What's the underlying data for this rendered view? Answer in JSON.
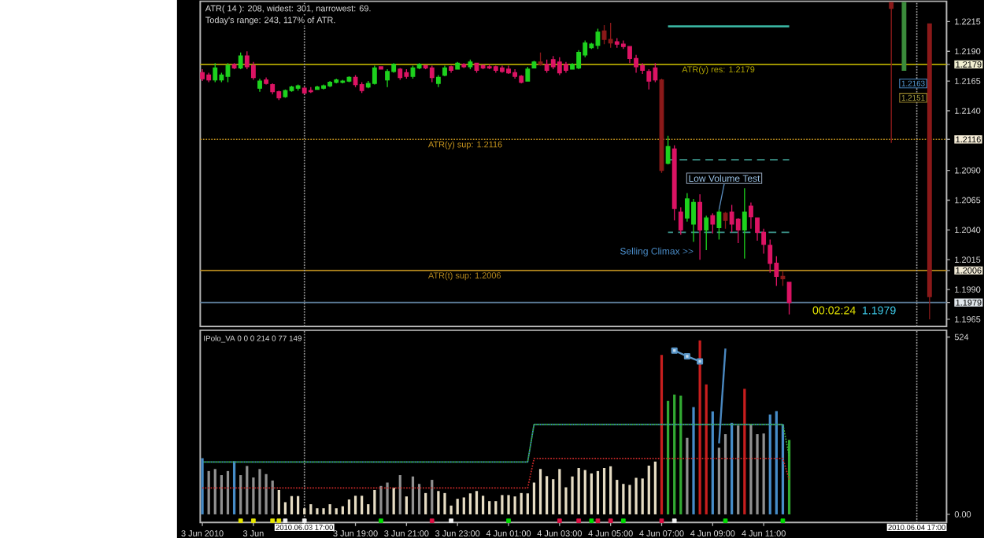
{
  "chart_data": [
    {
      "type": "candlestick",
      "x": [
        "2010-06-03T13:00",
        "2010-06-03T13:15",
        "2010-06-03T13:30",
        "2010-06-03T13:45",
        "2010-06-03T14:00",
        "2010-06-03T14:15",
        "2010-06-03T14:30",
        "2010-06-03T14:45",
        "2010-06-03T15:00",
        "2010-06-03T15:15",
        "2010-06-03T15:30",
        "2010-06-03T15:45",
        "2010-06-03T16:00",
        "2010-06-03T16:15",
        "2010-06-03T16:30",
        "2010-06-03T16:45",
        "2010-06-03T17:00",
        "2010-06-03T17:15",
        "2010-06-03T17:30",
        "2010-06-03T17:45",
        "2010-06-03T18:00",
        "2010-06-03T18:15",
        "2010-06-03T18:30",
        "2010-06-03T18:45",
        "2010-06-03T19:00",
        "2010-06-03T19:15",
        "2010-06-03T19:30",
        "2010-06-03T19:45",
        "2010-06-03T20:00",
        "2010-06-03T20:15",
        "2010-06-03T20:30",
        "2010-06-03T20:45",
        "2010-06-03T21:00",
        "2010-06-03T21:15",
        "2010-06-03T21:30",
        "2010-06-03T21:45",
        "2010-06-03T22:00",
        "2010-06-03T22:15",
        "2010-06-03T22:30",
        "2010-06-03T22:45",
        "2010-06-03T23:00",
        "2010-06-03T23:15",
        "2010-06-03T23:30",
        "2010-06-03T23:45",
        "2010-06-04T00:00",
        "2010-06-04T00:15",
        "2010-06-04T00:30",
        "2010-06-04T00:45",
        "2010-06-04T01:00",
        "2010-06-04T01:15",
        "2010-06-04T01:30",
        "2010-06-04T01:45",
        "2010-06-04T02:00",
        "2010-06-04T02:15",
        "2010-06-04T02:30",
        "2010-06-04T02:45",
        "2010-06-04T03:00",
        "2010-06-04T03:15",
        "2010-06-04T03:30",
        "2010-06-04T03:45",
        "2010-06-04T04:00",
        "2010-06-04T04:15",
        "2010-06-04T04:30",
        "2010-06-04T04:45",
        "2010-06-04T05:00",
        "2010-06-04T05:15",
        "2010-06-04T05:30",
        "2010-06-04T05:45",
        "2010-06-04T06:00",
        "2010-06-04T06:15",
        "2010-06-04T06:30",
        "2010-06-04T06:45",
        "2010-06-04T07:00",
        "2010-06-04T07:15",
        "2010-06-04T07:30",
        "2010-06-04T07:45",
        "2010-06-04T08:00",
        "2010-06-04T08:15",
        "2010-06-04T08:30",
        "2010-06-04T08:45",
        "2010-06-04T09:00",
        "2010-06-04T09:15",
        "2010-06-04T09:30",
        "2010-06-04T09:45",
        "2010-06-04T10:00",
        "2010-06-04T10:15",
        "2010-06-04T10:30",
        "2010-06-04T10:45",
        "2010-06-04T11:00",
        "2010-06-04T11:15",
        "2010-06-04T11:30",
        "2010-06-04T11:45",
        "2010-06-04T12:00",
        "2010-06-04T16:00",
        "2010-06-04T16:30",
        "2010-06-04T17:30"
      ],
      "ohlc": [
        [
          1.2172,
          1.2175,
          1.2165,
          1.2167
        ],
        [
          1.217,
          1.2172,
          1.2164,
          1.2166
        ],
        [
          1.2166,
          1.218,
          1.2164,
          1.2176
        ],
        [
          1.2166,
          1.2172,
          1.2164,
          1.217
        ],
        [
          1.2169,
          1.218,
          1.2164,
          1.2178
        ],
        [
          1.2179,
          1.218,
          1.2175,
          1.2176
        ],
        [
          1.2176,
          1.2189,
          1.2175,
          1.2186
        ],
        [
          1.2186,
          1.219,
          1.2175,
          1.2177
        ],
        [
          1.2178,
          1.2181,
          1.2166,
          1.2168
        ],
        [
          1.2159,
          1.2167,
          1.2156,
          1.2165
        ],
        [
          1.2166,
          1.2168,
          1.2162,
          1.2163
        ],
        [
          1.2162,
          1.2163,
          1.2154,
          1.2156
        ],
        [
          1.2156,
          1.2157,
          1.2149,
          1.2151
        ],
        [
          1.2152,
          1.2158,
          1.2151,
          1.2157
        ],
        [
          1.2157,
          1.2161,
          1.2156,
          1.216
        ],
        [
          1.2159,
          1.2162,
          1.2157,
          1.2161
        ],
        [
          1.2159,
          1.216,
          1.2154,
          1.2155
        ],
        [
          1.2157,
          1.216,
          1.2155,
          1.2156
        ],
        [
          1.2158,
          1.2161,
          1.2158,
          1.216
        ],
        [
          1.2159,
          1.2162,
          1.2158,
          1.2161
        ],
        [
          1.2161,
          1.2165,
          1.216,
          1.2164
        ],
        [
          1.2164,
          1.2167,
          1.2163,
          1.2166
        ],
        [
          1.2164,
          1.2166,
          1.2163,
          1.2165
        ],
        [
          1.2165,
          1.2169,
          1.2164,
          1.2168
        ],
        [
          1.2168,
          1.217,
          1.216,
          1.2162
        ],
        [
          1.2162,
          1.2164,
          1.2155,
          1.2157
        ],
        [
          1.216,
          1.2165,
          1.2159,
          1.2163
        ],
        [
          1.2163,
          1.2178,
          1.2162,
          1.2176
        ],
        [
          1.2177,
          1.2177,
          1.2175,
          1.2175
        ],
        [
          1.2166,
          1.2175,
          1.216,
          1.2173
        ],
        [
          1.2173,
          1.218,
          1.2172,
          1.2179
        ],
        [
          1.2175,
          1.2176,
          1.2166,
          1.2168
        ],
        [
          1.2172,
          1.2175,
          1.2167,
          1.2169
        ],
        [
          1.2169,
          1.2178,
          1.2167,
          1.2176
        ],
        [
          1.2176,
          1.218,
          1.2175,
          1.2179
        ],
        [
          1.2178,
          1.2178,
          1.2175,
          1.2176
        ],
        [
          1.2176,
          1.2178,
          1.2164,
          1.2168
        ],
        [
          1.2163,
          1.217,
          1.216,
          1.2168
        ],
        [
          1.217,
          1.2178,
          1.2169,
          1.2176
        ],
        [
          1.2177,
          1.2178,
          1.2172,
          1.2174
        ],
        [
          1.2175,
          1.2181,
          1.2175,
          1.218
        ],
        [
          1.2179,
          1.218,
          1.2176,
          1.2177
        ],
        [
          1.2177,
          1.2183,
          1.2175,
          1.2181
        ],
        [
          1.218,
          1.218,
          1.2172,
          1.2174
        ],
        [
          1.2178,
          1.2179,
          1.2175,
          1.2176
        ],
        [
          1.2177,
          1.2179,
          1.2175,
          1.2176
        ],
        [
          1.2177,
          1.2178,
          1.2172,
          1.2174
        ],
        [
          1.2176,
          1.2178,
          1.2172,
          1.2173
        ],
        [
          1.2175,
          1.2178,
          1.2171,
          1.2172
        ],
        [
          1.2172,
          1.2175,
          1.2167,
          1.2169
        ],
        [
          1.2169,
          1.217,
          1.2163,
          1.2164
        ],
        [
          1.2165,
          1.2177,
          1.2165,
          1.2175
        ],
        [
          1.2176,
          1.2182,
          1.2176,
          1.2181
        ],
        [
          1.2181,
          1.2189,
          1.2178,
          1.2179
        ],
        [
          1.2179,
          1.2183,
          1.2172,
          1.2174
        ],
        [
          1.2183,
          1.2186,
          1.2175,
          1.2177
        ],
        [
          1.2181,
          1.2185,
          1.217,
          1.2172
        ],
        [
          1.2179,
          1.2181,
          1.2172,
          1.2174
        ],
        [
          1.2175,
          1.218,
          1.2175,
          1.2179
        ],
        [
          1.2176,
          1.2191,
          1.2175,
          1.2189
        ],
        [
          1.2187,
          1.2199,
          1.2185,
          1.2197
        ],
        [
          1.2193,
          1.2197,
          1.2192,
          1.2196
        ],
        [
          1.2195,
          1.2209,
          1.2192,
          1.2206
        ],
        [
          1.2207,
          1.2212,
          1.2196,
          1.22
        ],
        [
          1.22,
          1.2214,
          1.2193,
          1.2197
        ],
        [
          1.2198,
          1.2201,
          1.2193,
          1.2196
        ],
        [
          1.2196,
          1.2199,
          1.2192,
          1.2194
        ],
        [
          1.2194,
          1.2194,
          1.218,
          1.2184
        ],
        [
          1.2184,
          1.2187,
          1.2172,
          1.2177
        ],
        [
          1.2178,
          1.218,
          1.2171,
          1.2174
        ],
        [
          1.2173,
          1.2175,
          1.2158,
          1.2165
        ],
        [
          1.2176,
          1.218,
          1.2164,
          1.2166
        ],
        [
          1.2166,
          1.2167,
          1.2088,
          1.209
        ],
        [
          1.2096,
          1.2119,
          1.2095,
          1.211
        ],
        [
          1.2108,
          1.2111,
          1.2048,
          1.2058
        ],
        [
          1.2055,
          1.2059,
          1.2036,
          1.204
        ],
        [
          1.205,
          1.2071,
          1.2047,
          1.2066
        ],
        [
          1.2045,
          1.2066,
          1.203,
          1.2063
        ],
        [
          1.2063,
          1.207,
          1.2015,
          1.204
        ],
        [
          1.204,
          1.2052,
          1.2023,
          1.205
        ],
        [
          1.2052,
          1.2054,
          1.2037,
          1.2045
        ],
        [
          1.2042,
          1.2057,
          1.2032,
          1.2055
        ],
        [
          1.2054,
          1.2055,
          1.2041,
          1.2048
        ],
        [
          1.2055,
          1.2061,
          1.2038,
          1.2045
        ],
        [
          1.2049,
          1.205,
          1.2029,
          1.204
        ],
        [
          1.204,
          1.2075,
          1.2016,
          1.2055
        ],
        [
          1.206,
          1.2063,
          1.2041,
          1.2051
        ],
        [
          1.205,
          1.205,
          1.2031,
          1.2038
        ],
        [
          1.2038,
          1.2041,
          1.202,
          1.2028
        ],
        [
          1.2027,
          1.2032,
          1.2004,
          1.2012
        ],
        [
          1.2012,
          1.2018,
          1.1993,
          1.2001
        ],
        [
          1.2001,
          1.2005,
          1.1993,
          1.1999
        ],
        [
          1.1996,
          1.1996,
          1.1969,
          1.1979
        ],
        [
          1.2231,
          1.2231,
          1.2113,
          1.2226
        ],
        [
          1.2174,
          1.2231,
          1.2174,
          1.2231
        ],
        [
          1.2213,
          1.2213,
          1.1965,
          1.1984
        ]
      ],
      "colors": [
        "#dc1464",
        "#dc1464",
        "#1ed21e",
        "#1ed21e",
        "#1ed21e",
        "#dc1464",
        "#1ed21e",
        "#dc1464",
        "#dc1464",
        "#1ed21e",
        "#dc1464",
        "#dc1464",
        "#dc1464",
        "#1ed21e",
        "#1ed21e",
        "#1ed21e",
        "#dc1464",
        "#dc1464",
        "#1ed21e",
        "#1ed21e",
        "#1ed21e",
        "#1ed21e",
        "#1ed21e",
        "#1ed21e",
        "#dc1464",
        "#dc1464",
        "#1ed21e",
        "#1ed21e",
        "#dc1464",
        "#1ed21e",
        "#1ed21e",
        "#dc1464",
        "#dc1464",
        "#1ed21e",
        "#1ed21e",
        "#dc1464",
        "#dc1464",
        "#1ed21e",
        "#1ed21e",
        "#dc1464",
        "#1ed21e",
        "#dc1464",
        "#1ed21e",
        "#dc1464",
        "#dc1464",
        "#dc1464",
        "#dc1464",
        "#dc1464",
        "#dc1464",
        "#dc1464",
        "#dc1464",
        "#1ed21e",
        "#1ed21e",
        "#8b1a1a",
        "#dc1464",
        "#dc1464",
        "#dc1464",
        "#dc1464",
        "#1ed21e",
        "#1ed21e",
        "#1ed21e",
        "#1ed21e",
        "#1ed21e",
        "#8b1a1a",
        "#8b1a1a",
        "#dc1464",
        "#dc1464",
        "#dc1464",
        "#dc1464",
        "#dc1464",
        "#dc1464",
        "#dc1464",
        "#8b1a1a",
        "#1ed21e",
        "#dc1464",
        "#dc1464",
        "#1ed21e",
        "#1ed21e",
        "#dc1464",
        "#1ed21e",
        "#dc1464",
        "#1ed21e",
        "#8b1a1a",
        "#dc1464",
        "#dc1464",
        "#1ed21e",
        "#dc1464",
        "#dc1464",
        "#dc1464",
        "#dc1464",
        "#dc1464",
        "#8b1a1a",
        "#dc1464",
        "#8b1a1a",
        "#3c8c3c",
        "#8b1a1a"
      ],
      "series": [
        {
          "type": "line",
          "x": [
            "2010-06-04T07:15",
            "2010-06-04T12:00"
          ],
          "values": [
            1.2211,
            1.2211
          ],
          "color": "#3cbca8",
          "line_style": "solid"
        },
        {
          "type": "line",
          "x": [
            "2010-06-04T07:15",
            "2010-06-04T12:00"
          ],
          "values": [
            1.2099,
            1.2099
          ],
          "color": "#3c968c",
          "line_style": "dashed"
        },
        {
          "type": "line",
          "x": [
            "2010-06-04T07:15",
            "2010-06-04T12:00"
          ],
          "values": [
            1.2038,
            1.2038
          ],
          "color": "#3c968c",
          "line_style": "dashed"
        }
      ],
      "xlim": [
        "2010-06-03T12:55",
        "2010-06-04T18:10"
      ],
      "ylim": [
        1.1959,
        1.2232
      ],
      "yticks": [
        1.2215,
        {
          "value": 1.219,
          "label": "1.2190"
        },
        1.2179,
        1.2165,
        {
          "value": 1.214,
          "label": "1.2140"
        },
        1.2116,
        {
          "value": 1.209,
          "label": "1.2090"
        },
        1.2065,
        {
          "value": 1.204,
          "label": "1.2040"
        },
        1.2015,
        1.2006,
        {
          "value": 1.199,
          "label": "1.1990"
        },
        1.1979,
        1.1965
      ],
      "tick_labels": "y",
      "ref_lines": [
        {
          "axis": "y",
          "value": 1.2179,
          "label": "ATR(y) res: 1.2179",
          "color": "#b4a800",
          "line_style": "solid"
        },
        {
          "axis": "y",
          "value": 1.2116,
          "label": "ATR(y) sup: 1.2116",
          "color": "#c8961e",
          "line_style": "dotted"
        },
        {
          "axis": "y",
          "value": 1.2006,
          "label": "ATR(t) sup: 1.2006",
          "color": "#b4881e",
          "line_style": "solid"
        },
        {
          "axis": "y",
          "value": 1.1979,
          "color": "#5a7a96",
          "line_style": "solid"
        },
        {
          "axis": "x",
          "value": "2010-06-03T17:00",
          "color": "#a0a0a0",
          "line_style": "dotted"
        },
        {
          "axis": "x",
          "value": "2010-06-04T17:00",
          "color": "#a0a0a0",
          "line_style": "dotted"
        }
      ],
      "annotations": [
        "ATR( 14 ): 208, widest: 301, narrowest: 69.",
        "Today's range: 243, 117% of ATR.",
        {
          "text": "Low Volume Test",
          "x": "2010-06-04T09:15",
          "y": 1.2057
        },
        {
          "text": "Selling Climax >>",
          "x": "2010-06-04T08:30",
          "y": 1.2015
        },
        {
          "text": "00:02:24",
          "x": "2010-06-04T12:00",
          "y": 1.1979
        },
        {
          "text": "1.1979",
          "x": "2010-06-04T14:45",
          "y": 1.1979
        },
        {
          "text": "1.2163",
          "y": 1.2163
        },
        {
          "text": "1.2151",
          "y": 1.2151
        }
      ]
    },
    {
      "type": "bar",
      "title": "IPolo_VA 0 0 0 214 0 77 149",
      "x": [
        "2010-06-03T13:00",
        "2010-06-03T13:15",
        "2010-06-03T13:30",
        "2010-06-03T13:45",
        "2010-06-03T14:00",
        "2010-06-03T14:15",
        "2010-06-03T14:30",
        "2010-06-03T14:45",
        "2010-06-03T15:00",
        "2010-06-03T15:15",
        "2010-06-03T15:30",
        "2010-06-03T15:45",
        "2010-06-03T16:00",
        "2010-06-03T16:15",
        "2010-06-03T16:30",
        "2010-06-03T16:45",
        "2010-06-03T17:00",
        "2010-06-03T17:15",
        "2010-06-03T17:30",
        "2010-06-03T17:45",
        "2010-06-03T18:00",
        "2010-06-03T18:15",
        "2010-06-03T18:30",
        "2010-06-03T18:45",
        "2010-06-03T19:00",
        "2010-06-03T19:15",
        "2010-06-03T19:30",
        "2010-06-03T19:45",
        "2010-06-03T20:00",
        "2010-06-03T20:15",
        "2010-06-03T20:30",
        "2010-06-03T20:45",
        "2010-06-03T21:00",
        "2010-06-03T21:15",
        "2010-06-03T21:30",
        "2010-06-03T21:45",
        "2010-06-03T22:00",
        "2010-06-03T22:15",
        "2010-06-03T22:30",
        "2010-06-03T22:45",
        "2010-06-03T23:00",
        "2010-06-03T23:15",
        "2010-06-03T23:30",
        "2010-06-03T23:45",
        "2010-06-04T00:00",
        "2010-06-04T00:15",
        "2010-06-04T00:30",
        "2010-06-04T00:45",
        "2010-06-04T01:00",
        "2010-06-04T01:15",
        "2010-06-04T01:30",
        "2010-06-04T01:45",
        "2010-06-04T02:00",
        "2010-06-04T02:15",
        "2010-06-04T02:30",
        "2010-06-04T02:45",
        "2010-06-04T03:00",
        "2010-06-04T03:15",
        "2010-06-04T03:30",
        "2010-06-04T03:45",
        "2010-06-04T04:00",
        "2010-06-04T04:15",
        "2010-06-04T04:30",
        "2010-06-04T04:45",
        "2010-06-04T05:00",
        "2010-06-04T05:15",
        "2010-06-04T05:30",
        "2010-06-04T05:45",
        "2010-06-04T06:00",
        "2010-06-04T06:15",
        "2010-06-04T06:30",
        "2010-06-04T06:45",
        "2010-06-04T07:00",
        "2010-06-04T07:15",
        "2010-06-04T07:30",
        "2010-06-04T07:45",
        "2010-06-04T08:00",
        "2010-06-04T08:15",
        "2010-06-04T08:30",
        "2010-06-04T08:45",
        "2010-06-04T09:00",
        "2010-06-04T09:15",
        "2010-06-04T09:30",
        "2010-06-04T09:45",
        "2010-06-04T10:00",
        "2010-06-04T10:15",
        "2010-06-04T10:30",
        "2010-06-04T10:45",
        "2010-06-04T11:00",
        "2010-06-04T11:15",
        "2010-06-04T11:30",
        "2010-06-04T11:45",
        "2010-06-04T12:00"
      ],
      "values": [
        166,
        128,
        134,
        116,
        128,
        157,
        116,
        143,
        109,
        134,
        119,
        100,
        72,
        36,
        54,
        54,
        18,
        30,
        18,
        18,
        30,
        18,
        24,
        44,
        55,
        55,
        30,
        72,
        84,
        94,
        79,
        116,
        53,
        112,
        90,
        63,
        102,
        69,
        63,
        26,
        46,
        50,
        62,
        69,
        55,
        39,
        39,
        57,
        57,
        53,
        63,
        62,
        94,
        134,
        113,
        104,
        134,
        80,
        112,
        137,
        131,
        121,
        128,
        137,
        142,
        102,
        90,
        87,
        108,
        106,
        144,
        156,
        471,
        335,
        354,
        351,
        226,
        317,
        514,
        384,
        304,
        197,
        237,
        270,
        263,
        371,
        266,
        237,
        239,
        295,
        305,
        266,
        220
      ],
      "colors": [
        "#468cc8",
        "#909090",
        "#909090",
        "#909090",
        "#909090",
        "#468cc8",
        "#909090",
        "#909090",
        "#909090",
        "#909090",
        "#909090",
        "#909090",
        "#e6dcc3",
        "#e6dcc3",
        "#e6dcc3",
        "#e6dcc3",
        "#e6dcc3",
        "#e6dcc3",
        "#e6dcc3",
        "#e6dcc3",
        "#e6dcc3",
        "#e6dcc3",
        "#e6dcc3",
        "#e6dcc3",
        "#e6dcc3",
        "#e6dcc3",
        "#e6dcc3",
        "#e6dcc3",
        "#909090",
        "#909090",
        "#e6dcc3",
        "#909090",
        "#e6dcc3",
        "#909090",
        "#909090",
        "#e6dcc3",
        "#909090",
        "#e6dcc3",
        "#e6dcc3",
        "#e6dcc3",
        "#e6dcc3",
        "#e6dcc3",
        "#e6dcc3",
        "#e6dcc3",
        "#e6dcc3",
        "#e6dcc3",
        "#e6dcc3",
        "#e6dcc3",
        "#e6dcc3",
        "#e6dcc3",
        "#e6dcc3",
        "#e6dcc3",
        "#e6dcc3",
        "#e6dcc3",
        "#e6dcc3",
        "#e6dcc3",
        "#e6dcc3",
        "#e6dcc3",
        "#e6dcc3",
        "#e6dcc3",
        "#e6dcc3",
        "#e6dcc3",
        "#e6dcc3",
        "#e6dcc3",
        "#e6dcc3",
        "#e6dcc3",
        "#e6dcc3",
        "#e6dcc3",
        "#e6dcc3",
        "#e6dcc3",
        "#e6dcc3",
        "#e6dcc3",
        "#c81e1e",
        "#32aa32",
        "#32aa32",
        "#32aa32",
        "#909090",
        "#468cc8",
        "#c81e1e",
        "#c81e1e",
        "#468cc8",
        "#909090",
        "#909090",
        "#468cc8",
        "#909090",
        "#c81e1e",
        "#909090",
        "#909090",
        "#909090",
        "#468cc8",
        "#468cc8",
        "#468cc8",
        "#32aa32"
      ],
      "series": [
        {
          "type": "line",
          "x": [
            "2010-06-03T13:00",
            "2010-06-04T01:45",
            "2010-06-04T02:00",
            "2010-06-04T11:45"
          ],
          "values": [
            155,
            155,
            266,
            266
          ],
          "color": "#3c8cc8",
          "line_style": "dotted"
        },
        {
          "type": "line",
          "x": [
            "2010-06-03T13:00",
            "2010-06-04T01:45",
            "2010-06-04T02:00",
            "2010-06-04T11:45",
            "2010-06-04T12:00"
          ],
          "values": [
            155,
            155,
            266,
            266,
            173
          ],
          "color": "#3cb43c",
          "line_style": "dotted"
        },
        {
          "type": "line",
          "x": [
            "2010-06-03T13:00",
            "2010-06-04T01:45",
            "2010-06-04T02:00",
            "2010-06-04T11:45",
            "2010-06-04T12:00"
          ],
          "values": [
            78,
            78,
            165,
            165,
            103
          ],
          "color": "#c82828",
          "line_style": "dotted"
        },
        {
          "type": "line",
          "x": [
            "2010-06-04T07:30",
            "2010-06-04T08:00",
            "2010-06-04T08:30"
          ],
          "values": [
            484,
            467,
            452
          ],
          "color": "#5a96c8",
          "marker": "square",
          "line_style": "solid"
        },
        {
          "type": "line",
          "x": [
            "2010-06-04T09:15",
            "2010-06-04T09:30"
          ],
          "values": [
            210,
            490
          ],
          "color": "#4a88c0",
          "line_style": "solid"
        },
        {
          "type": "scatter",
          "marker": "square",
          "x": [
            "2010-06-03T14:30",
            "2010-06-03T15:00",
            "2010-06-03T15:45",
            "2010-06-03T16:00",
            "2010-06-03T16:15",
            "2010-06-03T17:00",
            "2010-06-03T20:00",
            "2010-06-03T22:00",
            "2010-06-03T22:45",
            "2010-06-04T01:00",
            "2010-06-04T03:00",
            "2010-06-04T03:45",
            "2010-06-04T04:15",
            "2010-06-04T04:30",
            "2010-06-04T05:00",
            "2010-06-04T05:30",
            "2010-06-04T07:00",
            "2010-06-04T07:30",
            "2010-06-04T09:30",
            "2010-06-04T11:45"
          ],
          "values": [
            -19,
            -19,
            -19,
            -19,
            -19,
            -19,
            -19,
            -19,
            -19,
            -19,
            -19,
            -19,
            -19,
            -19,
            -19,
            -19,
            -19,
            -19,
            -19,
            -19
          ],
          "colors": [
            "#e6e600",
            "#e6e600",
            "#e6e600",
            "#e6e600",
            "#f0f0f0",
            "#f0f0f0",
            "#00dd00",
            "#dd1144",
            "#f0f0f0",
            "#00dd00",
            "#dd1144",
            "#dd1144",
            "#00dd00",
            "#dd1144",
            "#dd1144",
            "#00dd00",
            "#dd1144",
            "#f0f0f0",
            "#00dd00",
            "#00dd00"
          ]
        }
      ],
      "xlim": [
        "2010-06-03T12:55",
        "2010-06-04T18:10"
      ],
      "ylim": [
        -24,
        544
      ],
      "xticks": [
        {
          "value": "2010-06-03T13:00",
          "label": "3 Jun 2010"
        },
        {
          "value": "2010-06-03T15:00",
          "label": "3 Jun"
        },
        {
          "value": "2010-06-03T17:00",
          "label": null
        },
        {
          "value": "2010-06-03T19:00",
          "label": "3 Jun 19:00"
        },
        {
          "value": "2010-06-03T21:00",
          "label": "3 Jun 21:00"
        },
        {
          "value": "2010-06-03T23:00",
          "label": "3 Jun 23:00"
        },
        {
          "value": "2010-06-04T01:00",
          "label": "4 Jun 01:00"
        },
        {
          "value": "2010-06-04T03:00",
          "label": "4 Jun 03:00"
        },
        {
          "value": "2010-06-04T05:00",
          "label": "4 Jun 05:00"
        },
        {
          "value": "2010-06-04T07:00",
          "label": "4 Jun 07:00"
        },
        {
          "value": "2010-06-04T09:00",
          "label": "4 Jun 09:00"
        },
        {
          "value": "2010-06-04T11:00",
          "label": "4 Jun 11:00"
        }
      ],
      "yticks": [
        {
          "value": 0,
          "label": "0.00"
        },
        524
      ],
      "ref_lines": [
        {
          "axis": "x",
          "value": "2010-06-03T17:00",
          "label": "2010.06.03 17:00",
          "color": "#a0a0a0",
          "line_style": "dotted"
        },
        {
          "axis": "x",
          "value": "2010-06-04T17:00",
          "label": "2010.06.04 17:00",
          "color": "#a0a0a0",
          "line_style": "dotted"
        }
      ]
    }
  ]
}
